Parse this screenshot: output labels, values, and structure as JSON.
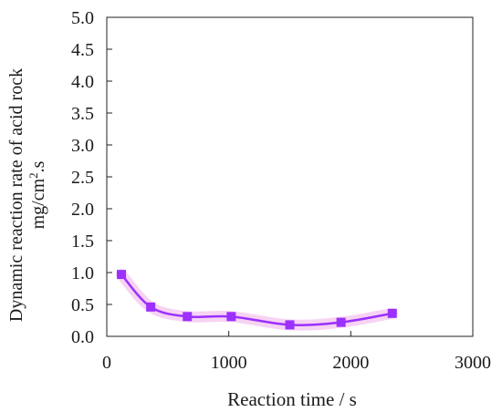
{
  "chart_data": {
    "type": "line",
    "xlabel": "Reaction time / s",
    "ylabel_line1": "Dynamic reaction rate of acid rock",
    "ylabel_line2_main": "mg/cm",
    "ylabel_line2_sup": "2",
    "ylabel_line2_tail": ".s",
    "xlim": [
      0,
      3000
    ],
    "ylim": [
      0,
      5.0
    ],
    "x_ticks": [
      0,
      1000,
      2000,
      3000
    ],
    "x_tick_labels": [
      "0",
      "1000",
      "2000",
      "3000"
    ],
    "y_ticks": [
      0,
      0.5,
      1.0,
      1.5,
      2.0,
      2.5,
      3.0,
      3.5,
      4.0,
      4.5,
      5.0
    ],
    "y_tick_labels": [
      "0.0",
      "0.5",
      "1.0",
      "1.5",
      "2.0",
      "2.5",
      "3.0",
      "3.5",
      "4.0",
      "4.5",
      "5.0"
    ],
    "grid": false,
    "series": [
      {
        "color": "#9b30ff",
        "marker": "square",
        "smooth": true,
        "x": [
          120,
          360,
          660,
          1020,
          1500,
          1920,
          2340
        ],
        "y": [
          0.97,
          0.46,
          0.31,
          0.31,
          0.18,
          0.22,
          0.36
        ]
      }
    ]
  }
}
